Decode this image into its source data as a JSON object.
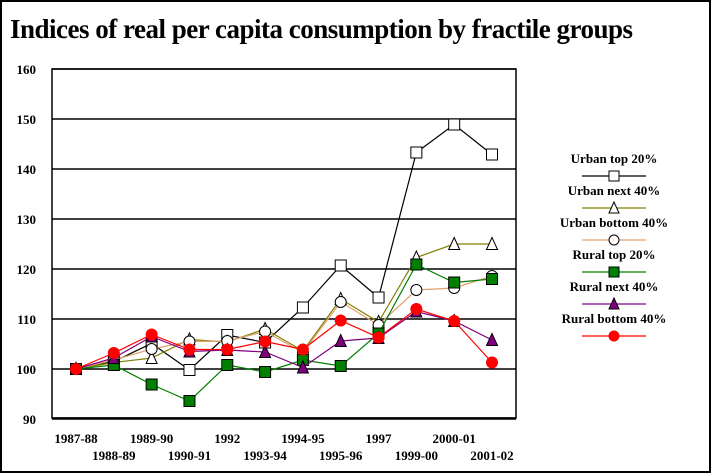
{
  "chart_data": {
    "type": "line",
    "title": "Indices of real per capita consumption by fractile groups",
    "xlabel": "",
    "ylabel": "",
    "ylim": [
      90,
      160
    ],
    "yticks": [
      "160",
      "150",
      "140",
      "130",
      "120",
      "110",
      "100",
      "90"
    ],
    "ytick_values": [
      160,
      150,
      140,
      130,
      120,
      110,
      100,
      90
    ],
    "grid": true,
    "legend_position": "right",
    "categories": [
      "1987-88",
      "1988-89",
      "1989-90",
      "1990-91",
      "1992",
      "1993-94",
      "1994-95",
      "1995-96",
      "1997",
      "1999-00",
      "2000-01",
      "2001-02"
    ],
    "series": [
      {
        "name": "Urban top 20%",
        "color": "#000000",
        "marker": "square",
        "marker_fill": "#ffffff",
        "values": [
          100,
          101.5,
          105.1,
          99.8,
          106.8,
          105.3,
          112.3,
          120.7,
          114.3,
          143.3,
          148.9,
          142.9
        ]
      },
      {
        "name": "Urban next 40%",
        "color": "#808000",
        "marker": "triangle",
        "marker_fill": "#ffffff",
        "values": [
          100,
          101.3,
          102.2,
          105.9,
          105.4,
          108.0,
          103.6,
          114.0,
          109.4,
          122.3,
          125.0,
          125.0
        ]
      },
      {
        "name": "Urban bottom 40%",
        "color": "#e0a070",
        "marker": "circle",
        "marker_fill": "#ffffff",
        "values": [
          100,
          101.8,
          104.0,
          105.5,
          105.6,
          107.5,
          103.3,
          113.4,
          108.8,
          115.8,
          116.2,
          118.6
        ]
      },
      {
        "name": "Rural top 20%",
        "color": "#008000",
        "marker": "square",
        "marker_fill": "#008000",
        "values": [
          100,
          100.8,
          96.9,
          93.6,
          100.8,
          99.4,
          101.8,
          100.6,
          107.1,
          120.9,
          117.3,
          118.0
        ]
      },
      {
        "name": "Rural next 40%",
        "color": "#800080",
        "marker": "triangle",
        "marker_fill": "#800080",
        "values": [
          100,
          102.2,
          106.5,
          103.5,
          103.8,
          103.4,
          100.3,
          105.6,
          106.2,
          111.5,
          109.6,
          105.8
        ]
      },
      {
        "name": "Rural bottom 40%",
        "color": "#ff0000",
        "marker": "circle",
        "marker_fill": "#ff0000",
        "values": [
          100,
          103.2,
          106.9,
          103.9,
          103.9,
          105.5,
          103.9,
          109.7,
          106.3,
          112.0,
          109.6,
          101.3
        ]
      }
    ]
  }
}
